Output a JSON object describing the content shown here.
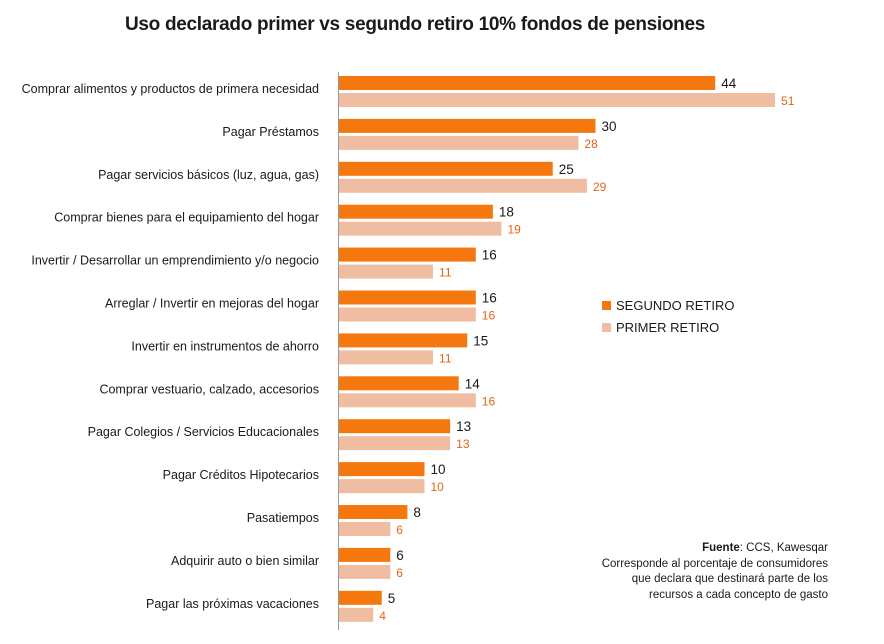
{
  "title": "Uso declarado primer vs segundo retiro 10% fondos de pensiones",
  "legend": {
    "segundo": "SEGUNDO RETIRO",
    "primer": "PRIMER RETIRO"
  },
  "notes": {
    "source_label": "Fuente",
    "source_text": ": CCS, Kawesqar",
    "desc_line1": "Corresponde al porcentaje de consumidores",
    "desc_line2": "que declara que destinará parte de los",
    "desc_line3": "recursos a cada concepto de gasto"
  },
  "colors": {
    "segundo": "#f5780f",
    "primer": "#efbea2",
    "primer_label": "#e0651a"
  },
  "chart_data": {
    "type": "bar",
    "orientation": "horizontal",
    "title": "Uso declarado primer vs segundo retiro 10% fondos de pensiones",
    "categories": [
      "Comprar alimentos y productos de primera necesidad",
      "Pagar Préstamos",
      "Pagar servicios básicos (luz, agua, gas)",
      "Comprar bienes para el equipamiento del hogar",
      "Invertir / Desarrollar un emprendimiento y/o negocio",
      "Arreglar / Invertir en mejoras del hogar",
      "Invertir en instrumentos de ahorro",
      "Comprar vestuario, calzado, accesorios",
      "Pagar Colegios / Servicios Educacionales",
      "Pagar Créditos Hipotecarios",
      "Pasatiempos",
      "Adquirir auto o bien similar",
      "Pagar las próximas vacaciones"
    ],
    "series": [
      {
        "name": "SEGUNDO RETIRO",
        "values": [
          44,
          30,
          25,
          18,
          16,
          16,
          15,
          14,
          13,
          10,
          8,
          6,
          5
        ]
      },
      {
        "name": "PRIMER RETIRO",
        "values": [
          51,
          28,
          29,
          19,
          11,
          16,
          11,
          16,
          13,
          10,
          6,
          6,
          4
        ]
      }
    ],
    "xlim": [
      0,
      60
    ],
    "legend_position": "right",
    "grid": false
  }
}
